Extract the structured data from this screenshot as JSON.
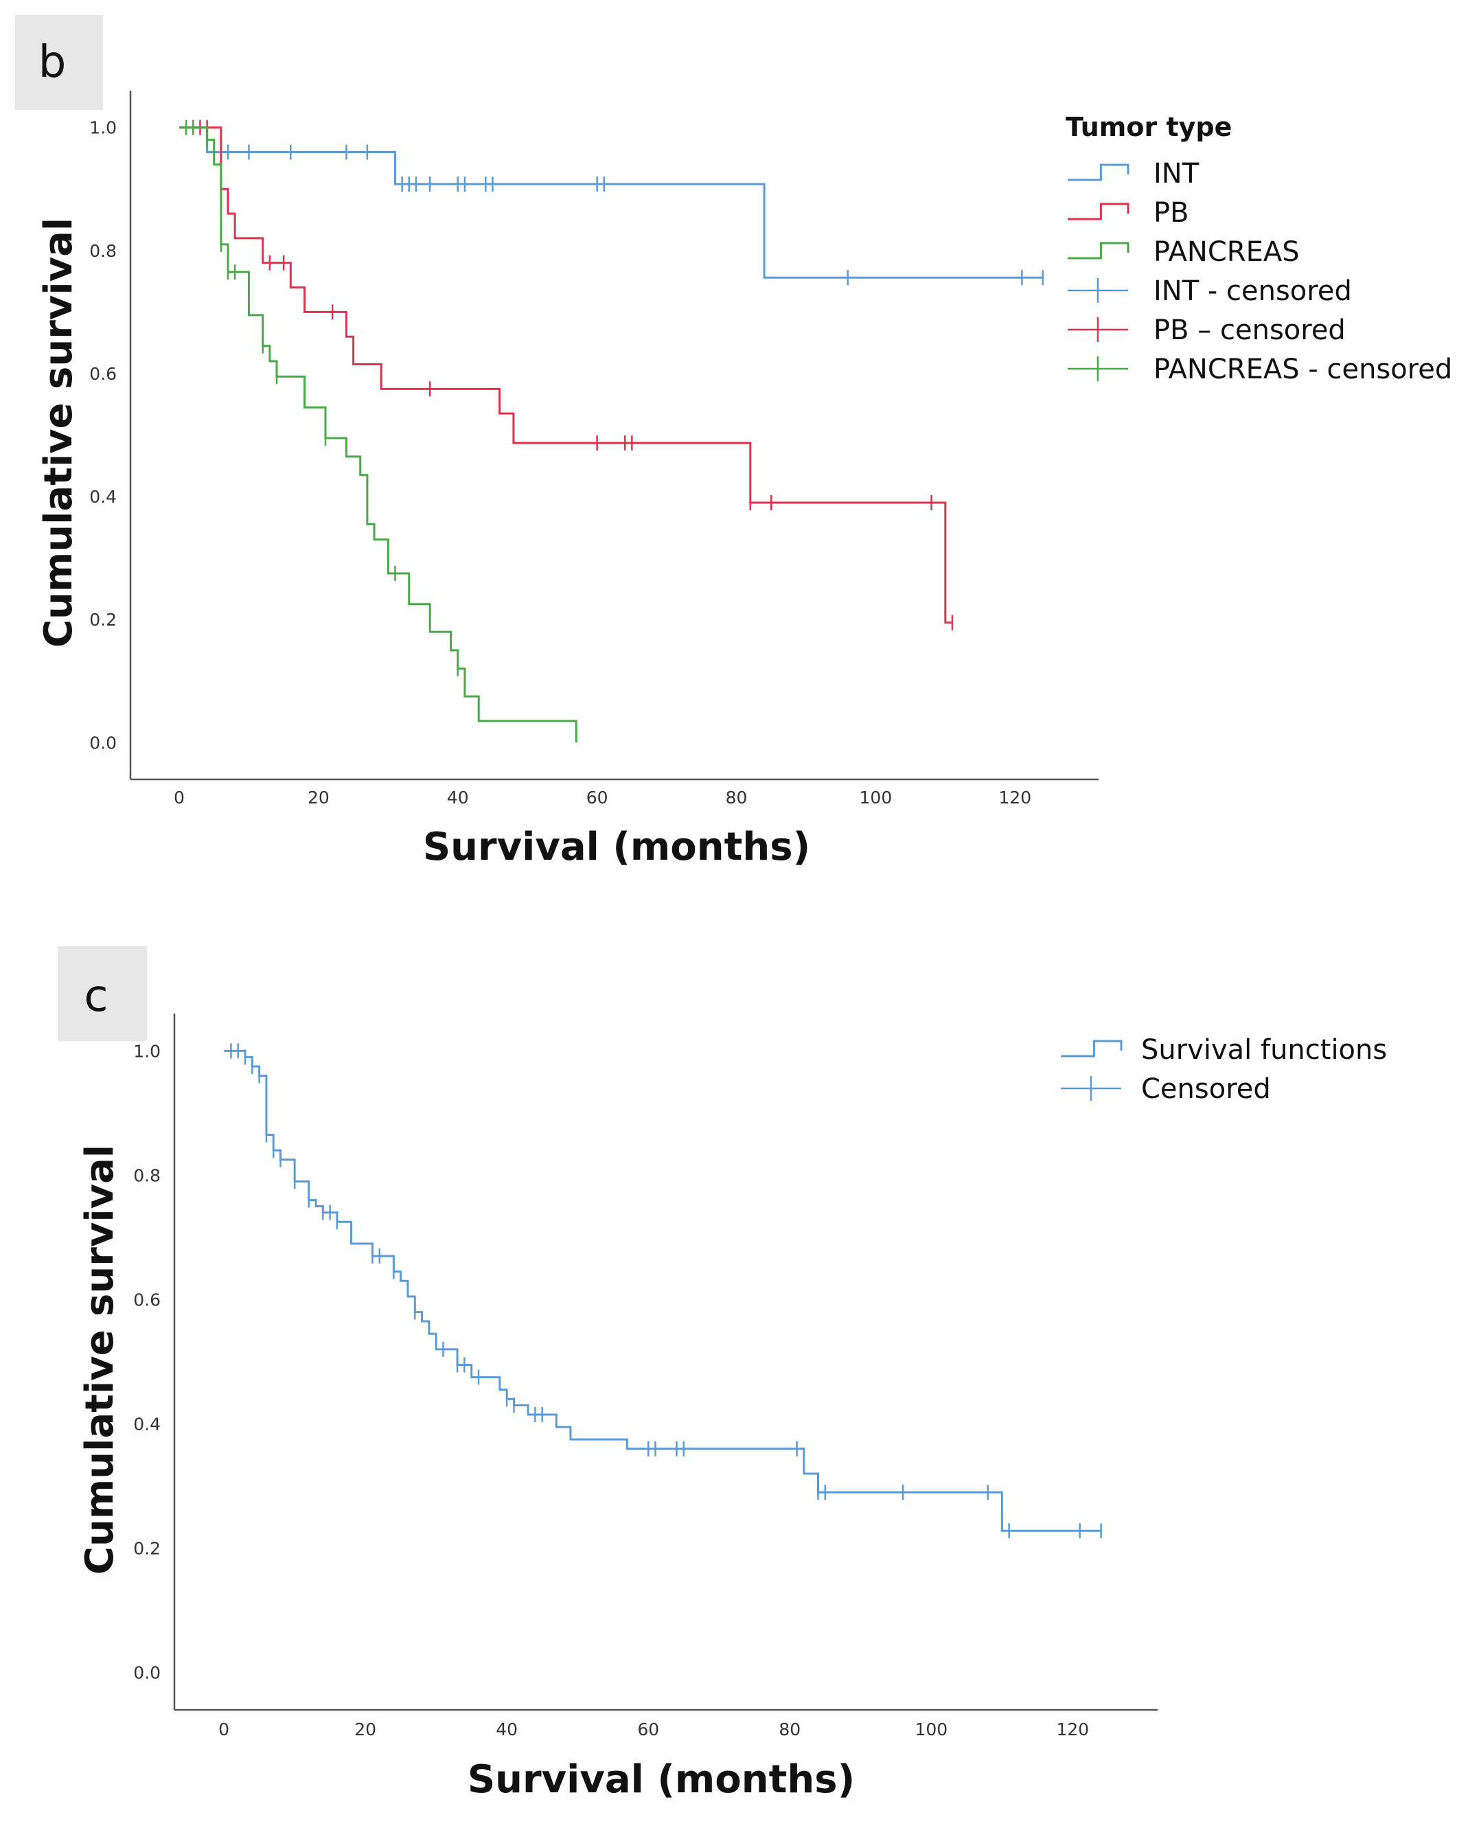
{
  "chart_data": [
    {
      "panel": "b",
      "type": "line",
      "subtype": "kaplan-meier",
      "xlabel": "Survival (months)",
      "ylabel": "Cumulative survival",
      "xlim": [
        -7,
        132
      ],
      "ylim": [
        -0.06,
        1.06
      ],
      "x_ticks": [
        "0",
        "20",
        "40",
        "60",
        "80",
        "100",
        "120"
      ],
      "y_ticks": [
        "0.0",
        "0.2",
        "0.4",
        "0.6",
        "0.8",
        "1.0"
      ],
      "legend_title": "Tumor type",
      "legend_position": "top-right",
      "legend": [
        "INT",
        "PB",
        "PANCREAS",
        "INT - censored",
        "PB – censored",
        "PANCREAS - censored"
      ],
      "series": [
        {
          "name": "INT",
          "color": "#5b9bd5",
          "steps": [
            [
              0,
              1.0
            ],
            [
              4,
              0.96
            ],
            [
              31,
              0.908
            ],
            [
              84,
              0.756
            ],
            [
              124,
              0.756
            ]
          ],
          "censored": [
            7,
            10,
            16,
            24,
            27,
            32,
            33,
            34,
            36,
            40,
            41,
            44,
            45,
            60,
            61,
            96,
            121,
            124
          ]
        },
        {
          "name": "PB",
          "color": "#e0314f",
          "steps": [
            [
              0,
              1.0
            ],
            [
              6,
              0.9
            ],
            [
              7,
              0.86
            ],
            [
              8,
              0.82
            ],
            [
              12,
              0.78
            ],
            [
              16,
              0.74
            ],
            [
              18,
              0.7
            ],
            [
              24,
              0.66
            ],
            [
              25,
              0.615
            ],
            [
              29,
              0.575
            ],
            [
              46,
              0.535
            ],
            [
              48,
              0.487
            ],
            [
              82,
              0.39
            ],
            [
              110,
              0.195
            ],
            [
              111,
              0.195
            ]
          ],
          "censored": [
            3,
            4,
            13,
            15,
            22,
            36,
            60,
            64,
            65,
            82,
            85,
            108,
            111
          ]
        },
        {
          "name": "PANCREAS",
          "color": "#4aa84a",
          "steps": [
            [
              0,
              1.0
            ],
            [
              4,
              0.98
            ],
            [
              5,
              0.94
            ],
            [
              6,
              0.81
            ],
            [
              7,
              0.765
            ],
            [
              10,
              0.695
            ],
            [
              12,
              0.645
            ],
            [
              13,
              0.62
            ],
            [
              14,
              0.595
            ],
            [
              18,
              0.545
            ],
            [
              21,
              0.495
            ],
            [
              24,
              0.465
            ],
            [
              26,
              0.435
            ],
            [
              27,
              0.355
            ],
            [
              28,
              0.33
            ],
            [
              30,
              0.275
            ],
            [
              33,
              0.225
            ],
            [
              36,
              0.18
            ],
            [
              39,
              0.15
            ],
            [
              40,
              0.12
            ],
            [
              41,
              0.075
            ],
            [
              43,
              0.035
            ],
            [
              57,
              0.035
            ],
            [
              57,
              0.0
            ]
          ],
          "censored": [
            1,
            2,
            4,
            6,
            7,
            8,
            12,
            14,
            21,
            31,
            40
          ]
        }
      ]
    },
    {
      "panel": "c",
      "type": "line",
      "subtype": "kaplan-meier",
      "xlabel": "Survival (months)",
      "ylabel": "Cumulative survival",
      "xlim": [
        -7,
        132
      ],
      "ylim": [
        -0.06,
        1.06
      ],
      "x_ticks": [
        "0",
        "20",
        "40",
        "60",
        "80",
        "100",
        "120"
      ],
      "y_ticks": [
        "0.0",
        "0.2",
        "0.4",
        "0.6",
        "0.8",
        "1.0"
      ],
      "legend_position": "top-right",
      "legend": [
        "Survival functions",
        "Censored"
      ],
      "series": [
        {
          "name": "Survival functions",
          "color": "#5b9bd5",
          "steps": [
            [
              0,
              1.0
            ],
            [
              3,
              0.99
            ],
            [
              4,
              0.975
            ],
            [
              5,
              0.96
            ],
            [
              6,
              0.865
            ],
            [
              7,
              0.84
            ],
            [
              8,
              0.825
            ],
            [
              10,
              0.79
            ],
            [
              12,
              0.76
            ],
            [
              13,
              0.75
            ],
            [
              14,
              0.74
            ],
            [
              16,
              0.725
            ],
            [
              18,
              0.69
            ],
            [
              21,
              0.67
            ],
            [
              24,
              0.645
            ],
            [
              25,
              0.63
            ],
            [
              26,
              0.605
            ],
            [
              27,
              0.58
            ],
            [
              28,
              0.565
            ],
            [
              29,
              0.545
            ],
            [
              30,
              0.52
            ],
            [
              33,
              0.495
            ],
            [
              35,
              0.475
            ],
            [
              39,
              0.455
            ],
            [
              40,
              0.44
            ],
            [
              41,
              0.43
            ],
            [
              43,
              0.415
            ],
            [
              47,
              0.395
            ],
            [
              49,
              0.375
            ],
            [
              57,
              0.36
            ],
            [
              82,
              0.32
            ],
            [
              84,
              0.29
            ],
            [
              110,
              0.228
            ],
            [
              124,
              0.228
            ]
          ],
          "censored": [
            1,
            2,
            3,
            4,
            5,
            6,
            7,
            8,
            10,
            12,
            14,
            15,
            16,
            21,
            22,
            24,
            27,
            31,
            33,
            34,
            36,
            40,
            41,
            44,
            45,
            60,
            61,
            64,
            65,
            81,
            84,
            85,
            96,
            108,
            111,
            121,
            124
          ]
        }
      ]
    }
  ]
}
